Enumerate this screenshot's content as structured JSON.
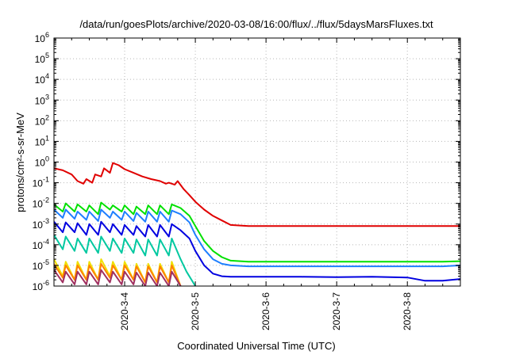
{
  "chart_data": {
    "type": "line",
    "title": "/data/run/goesPlots/archive/2020-03-08/16:00/flux/../flux/5daysMarsFluxes.txt",
    "xlabel": "Coordinated Universal Time (UTC)",
    "ylabel": "protons/cm²-s-sr-MeV",
    "y_scale": "log",
    "ylim": [
      1e-06,
      1000000.0
    ],
    "xlim": [
      "2020-03-03 00:00",
      "2020-03-08 18:00"
    ],
    "grid": true,
    "legend": "none",
    "y_ticks": [
      {
        "value": 1e-06,
        "base": "10",
        "exp": "-6"
      },
      {
        "value": 1e-05,
        "base": "10",
        "exp": "-5"
      },
      {
        "value": 0.0001,
        "base": "10",
        "exp": "-4"
      },
      {
        "value": 0.001,
        "base": "10",
        "exp": "-3"
      },
      {
        "value": 0.01,
        "base": "10",
        "exp": "-2"
      },
      {
        "value": 0.1,
        "base": "10",
        "exp": "-1"
      },
      {
        "value": 1,
        "base": "10",
        "exp": "0"
      },
      {
        "value": 10,
        "base": "10",
        "exp": "1"
      },
      {
        "value": 100,
        "base": "10",
        "exp": "2"
      },
      {
        "value": 1000,
        "base": "10",
        "exp": "3"
      },
      {
        "value": 10000,
        "base": "10",
        "exp": "4"
      },
      {
        "value": 100000,
        "base": "10",
        "exp": "5"
      },
      {
        "value": 1000000,
        "base": "10",
        "exp": "6"
      }
    ],
    "x_ticks": [
      "2020-3-4",
      "2020-3-5",
      "2020-3-6",
      "2020-3-7",
      "2020-3-8"
    ],
    "series": [
      {
        "color": "#e00000",
        "x": [
          "2020-03-03 00:00",
          "2020-03-03 03:00",
          "2020-03-03 06:00",
          "2020-03-03 08:00",
          "2020-03-03 10:00",
          "2020-03-03 11:00",
          "2020-03-03 13:00",
          "2020-03-03 14:00",
          "2020-03-03 16:00",
          "2020-03-03 17:00",
          "2020-03-03 19:00",
          "2020-03-03 20:00",
          "2020-03-03 22:00",
          "2020-03-04 00:00",
          "2020-03-04 03:00",
          "2020-03-04 06:00",
          "2020-03-04 09:00",
          "2020-03-04 12:00",
          "2020-03-04 14:00",
          "2020-03-04 15:00",
          "2020-03-04 17:00",
          "2020-03-04 18:00",
          "2020-03-04 20:00",
          "2020-03-04 22:00",
          "2020-03-05 00:00",
          "2020-03-05 03:00",
          "2020-03-05 06:00",
          "2020-03-05 09:00",
          "2020-03-05 12:00",
          "2020-03-05 18:00",
          "2020-03-06 00:00",
          "2020-03-06 12:00",
          "2020-03-07 00:00",
          "2020-03-07 12:00",
          "2020-03-08 00:00",
          "2020-03-08 12:00",
          "2020-03-08 18:00"
        ],
        "values": [
          0.5,
          0.4,
          0.25,
          0.12,
          0.09,
          0.15,
          0.1,
          0.25,
          0.2,
          0.5,
          0.3,
          0.9,
          0.7,
          0.45,
          0.3,
          0.2,
          0.15,
          0.12,
          0.09,
          0.1,
          0.08,
          0.12,
          0.05,
          0.025,
          0.012,
          0.005,
          0.0025,
          0.0015,
          0.0009,
          0.0008,
          0.0008,
          0.0008,
          0.0008,
          0.0008,
          0.0008,
          0.0008,
          0.0008
        ]
      },
      {
        "color": "#00e000",
        "x": [
          "2020-03-03 00:00",
          "2020-03-03 03:00",
          "2020-03-03 04:00",
          "2020-03-03 07:00",
          "2020-03-03 08:00",
          "2020-03-03 11:00",
          "2020-03-03 12:00",
          "2020-03-03 15:00",
          "2020-03-03 16:00",
          "2020-03-03 19:00",
          "2020-03-03 20:00",
          "2020-03-03 23:00",
          "2020-03-04 00:00",
          "2020-03-04 03:00",
          "2020-03-04 04:00",
          "2020-03-04 07:00",
          "2020-03-04 08:00",
          "2020-03-04 11:00",
          "2020-03-04 12:00",
          "2020-03-04 15:00",
          "2020-03-04 16:00",
          "2020-03-04 19:00",
          "2020-03-04 22:00",
          "2020-03-05 00:00",
          "2020-03-05 03:00",
          "2020-03-05 06:00",
          "2020-03-05 09:00",
          "2020-03-05 12:00",
          "2020-03-05 18:00",
          "2020-03-06 00:00",
          "2020-03-06 12:00",
          "2020-03-07 00:00",
          "2020-03-07 12:00",
          "2020-03-08 00:00",
          "2020-03-08 12:00",
          "2020-03-08 18:00"
        ],
        "values": [
          0.009,
          0.004,
          0.01,
          0.004,
          0.009,
          0.004,
          0.008,
          0.003,
          0.011,
          0.005,
          0.008,
          0.004,
          0.008,
          0.003,
          0.007,
          0.003,
          0.008,
          0.003,
          0.008,
          0.003,
          0.009,
          0.006,
          0.0025,
          0.0008,
          0.00015,
          5e-05,
          2.5e-05,
          1.7e-05,
          1.5e-05,
          1.5e-05,
          1.5e-05,
          1.5e-05,
          1.5e-05,
          1.5e-05,
          1.5e-05,
          1.6e-05
        ]
      },
      {
        "color": "#1e7fff",
        "x": [
          "2020-03-03 00:00",
          "2020-03-03 03:00",
          "2020-03-03 04:00",
          "2020-03-03 07:00",
          "2020-03-03 08:00",
          "2020-03-03 11:00",
          "2020-03-03 12:00",
          "2020-03-03 15:00",
          "2020-03-03 16:00",
          "2020-03-03 19:00",
          "2020-03-03 20:00",
          "2020-03-03 23:00",
          "2020-03-04 00:00",
          "2020-03-04 03:00",
          "2020-03-04 04:00",
          "2020-03-04 07:00",
          "2020-03-04 08:00",
          "2020-03-04 11:00",
          "2020-03-04 12:00",
          "2020-03-04 15:00",
          "2020-03-04 16:00",
          "2020-03-04 19:00",
          "2020-03-04 22:00",
          "2020-03-05 00:00",
          "2020-03-05 03:00",
          "2020-03-05 06:00",
          "2020-03-05 09:00",
          "2020-03-05 12:00",
          "2020-03-05 18:00",
          "2020-03-06 00:00",
          "2020-03-06 12:00",
          "2020-03-07 00:00",
          "2020-03-07 12:00",
          "2020-03-08 00:00",
          "2020-03-08 12:00",
          "2020-03-08 18:00"
        ],
        "values": [
          0.005,
          0.002,
          0.005,
          0.0018,
          0.004,
          0.0016,
          0.004,
          0.0014,
          0.005,
          0.002,
          0.004,
          0.0016,
          0.004,
          0.0014,
          0.0035,
          0.0013,
          0.004,
          0.0013,
          0.004,
          0.0013,
          0.0045,
          0.003,
          0.0012,
          0.0003,
          6e-05,
          2e-05,
          1.2e-05,
          1e-05,
          9e-06,
          9e-06,
          9e-06,
          9e-06,
          9e-06,
          9e-06,
          9e-06,
          1e-05
        ]
      },
      {
        "color": "#0000e0",
        "x": [
          "2020-03-03 00:00",
          "2020-03-03 03:00",
          "2020-03-03 04:00",
          "2020-03-03 07:00",
          "2020-03-03 08:00",
          "2020-03-03 11:00",
          "2020-03-03 12:00",
          "2020-03-03 15:00",
          "2020-03-03 16:00",
          "2020-03-03 19:00",
          "2020-03-03 20:00",
          "2020-03-03 23:00",
          "2020-03-04 00:00",
          "2020-03-04 03:00",
          "2020-03-04 04:00",
          "2020-03-04 07:00",
          "2020-03-04 08:00",
          "2020-03-04 11:00",
          "2020-03-04 12:00",
          "2020-03-04 15:00",
          "2020-03-04 16:00",
          "2020-03-04 19:00",
          "2020-03-04 22:00",
          "2020-03-05 00:00",
          "2020-03-05 03:00",
          "2020-03-05 06:00",
          "2020-03-05 09:00",
          "2020-03-05 12:00",
          "2020-03-05 18:00",
          "2020-03-06 00:00",
          "2020-03-06 12:00",
          "2020-03-07 00:00",
          "2020-03-07 12:00",
          "2020-03-08 00:00",
          "2020-03-08 06:00",
          "2020-03-08 12:00",
          "2020-03-08 18:00"
        ],
        "values": [
          0.0013,
          0.0004,
          0.0012,
          0.0004,
          0.0011,
          0.0003,
          0.001,
          0.0003,
          0.0013,
          0.0004,
          0.001,
          0.0003,
          0.0009,
          0.0003,
          0.0008,
          0.00025,
          0.0009,
          0.00025,
          0.0009,
          0.00025,
          0.001,
          0.0005,
          0.0002,
          5e-05,
          1e-05,
          4e-06,
          3e-06,
          2.8e-06,
          2.8e-06,
          2.8e-06,
          2.8e-06,
          2.7e-06,
          2.8e-06,
          2.6e-06,
          1.8e-06,
          1.8e-06,
          2.2e-06
        ]
      },
      {
        "color": "#00c8a0",
        "x": [
          "2020-03-03 00:00",
          "2020-03-03 03:00",
          "2020-03-03 04:00",
          "2020-03-03 07:00",
          "2020-03-03 08:00",
          "2020-03-03 11:00",
          "2020-03-03 12:00",
          "2020-03-03 15:00",
          "2020-03-03 16:00",
          "2020-03-03 19:00",
          "2020-03-03 20:00",
          "2020-03-03 23:00",
          "2020-03-04 00:00",
          "2020-03-04 03:00",
          "2020-03-04 04:00",
          "2020-03-04 07:00",
          "2020-03-04 08:00",
          "2020-03-04 11:00",
          "2020-03-04 12:00",
          "2020-03-04 15:00",
          "2020-03-04 16:00",
          "2020-03-04 19:00",
          "2020-03-04 21:00",
          "2020-03-05 00:00"
        ],
        "values": [
          0.0003,
          6e-05,
          0.00025,
          5e-05,
          0.0002,
          4e-05,
          0.0002,
          4e-05,
          0.00025,
          5e-05,
          0.0002,
          4e-05,
          0.0002,
          4e-05,
          0.00018,
          3e-05,
          0.00018,
          3e-05,
          0.00018,
          3e-05,
          0.0002,
          2e-05,
          5e-06,
          1e-06
        ]
      },
      {
        "color": "#f0e000",
        "x": [
          "2020-03-03 00:00",
          "2020-03-03 03:00",
          "2020-03-03 04:00",
          "2020-03-03 07:00",
          "2020-03-03 08:00",
          "2020-03-03 11:00",
          "2020-03-03 12:00",
          "2020-03-03 15:00",
          "2020-03-03 16:00",
          "2020-03-03 19:00",
          "2020-03-03 20:00",
          "2020-03-03 23:00",
          "2020-03-04 00:00",
          "2020-03-04 03:00",
          "2020-03-04 04:00",
          "2020-03-04 07:00",
          "2020-03-04 08:00",
          "2020-03-04 11:00",
          "2020-03-04 12:00",
          "2020-03-04 15:00",
          "2020-03-04 16:00",
          "2020-03-04 19:00"
        ],
        "values": [
          2e-05,
          3e-06,
          1.5e-05,
          2e-06,
          1.5e-05,
          2e-06,
          1.5e-05,
          2e-06,
          2e-05,
          3e-06,
          1.5e-05,
          2e-06,
          1.5e-05,
          2e-06,
          1.2e-05,
          1.5e-06,
          1.2e-05,
          1.5e-06,
          1.2e-05,
          1.5e-06,
          1.5e-05,
          1e-06
        ]
      },
      {
        "color": "#ff8000",
        "x": [
          "2020-03-03 00:00",
          "2020-03-03 03:00",
          "2020-03-03 04:00",
          "2020-03-03 07:00",
          "2020-03-03 08:00",
          "2020-03-03 11:00",
          "2020-03-03 12:00",
          "2020-03-03 15:00",
          "2020-03-03 16:00",
          "2020-03-03 19:00",
          "2020-03-03 20:00",
          "2020-03-03 23:00",
          "2020-03-04 00:00",
          "2020-03-04 03:00",
          "2020-03-04 04:00",
          "2020-03-04 07:00",
          "2020-03-04 08:00",
          "2020-03-04 11:00",
          "2020-03-04 12:00",
          "2020-03-04 15:00",
          "2020-03-04 16:00",
          "2020-03-04 19:00"
        ],
        "values": [
          1.2e-05,
          2.5e-06,
          1e-05,
          2e-06,
          1e-05,
          2e-06,
          1e-05,
          2e-06,
          1.2e-05,
          2.5e-06,
          1e-05,
          2e-06,
          1e-05,
          2e-06,
          9e-06,
          1.5e-06,
          9e-06,
          1.5e-06,
          9e-06,
          1.5e-06,
          1e-05,
          1e-06
        ]
      },
      {
        "color": "#a03060",
        "x": [
          "2020-03-03 00:00",
          "2020-03-03 03:00",
          "2020-03-03 04:00",
          "2020-03-03 07:00",
          "2020-03-03 08:00",
          "2020-03-03 11:00",
          "2020-03-03 12:00",
          "2020-03-03 15:00",
          "2020-03-03 16:00",
          "2020-03-03 19:00",
          "2020-03-03 20:00",
          "2020-03-03 23:00",
          "2020-03-04 00:00",
          "2020-03-04 03:00",
          "2020-03-04 04:00",
          "2020-03-04 07:00",
          "2020-03-04 08:00",
          "2020-03-04 11:00",
          "2020-03-04 12:00",
          "2020-03-04 15:00",
          "2020-03-04 16:00",
          "2020-03-04 19:00"
        ],
        "values": [
          6e-06,
          1.5e-06,
          5e-06,
          1.2e-06,
          5e-06,
          1.2e-06,
          5e-06,
          1.2e-06,
          6e-06,
          1.5e-06,
          5e-06,
          1.2e-06,
          5e-06,
          1.2e-06,
          4.5e-06,
          1e-06,
          4.5e-06,
          1e-06,
          4.5e-06,
          1e-06,
          5e-06,
          1e-06
        ]
      }
    ]
  }
}
